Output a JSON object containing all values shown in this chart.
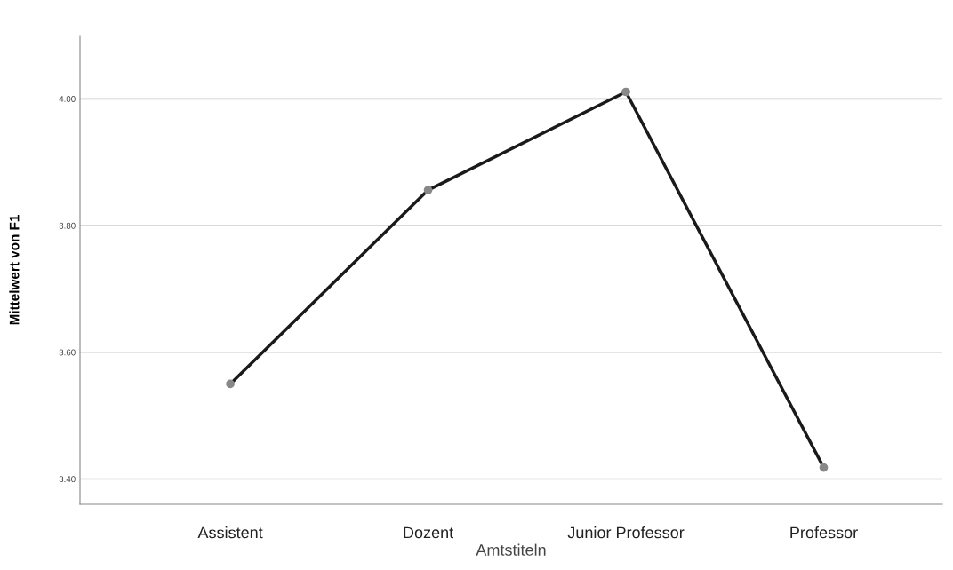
{
  "chart_data": {
    "type": "line",
    "xlabel": "Amtstiteln",
    "ylabel": "Mittelwert von F1",
    "categories": [
      "Assistent",
      "Dozent",
      "Junior Professor",
      "Professor"
    ],
    "series": [
      {
        "color": "#1a1a1a",
        "values": [
          3.55,
          3.856,
          4.011,
          3.418
        ]
      }
    ],
    "ylim": [
      3.36,
      4.1
    ],
    "yticks": [
      {
        "value": 3.4,
        "label": "3.40"
      },
      {
        "value": 3.6,
        "label": "3.60"
      },
      {
        "value": 3.8,
        "label": "3.80"
      },
      {
        "value": 4.0,
        "label": "4.00"
      }
    ],
    "grid": "y",
    "marker": "circle",
    "line_style": "solid"
  }
}
